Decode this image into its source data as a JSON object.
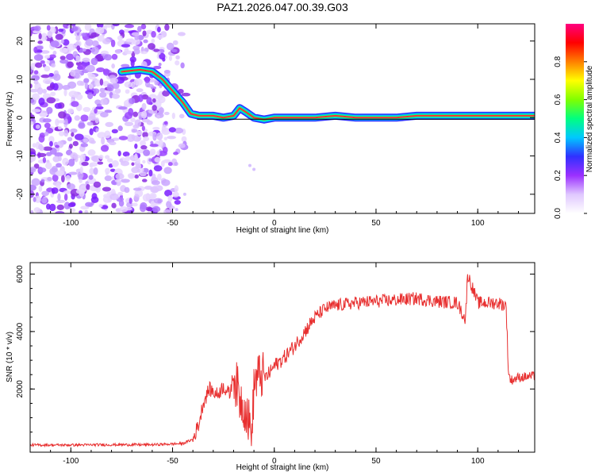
{
  "title": "PAZ1.2026.047.00.39.G03",
  "chart_data": [
    {
      "id": "spectrogram",
      "type": "heatmap",
      "xlabel": "Height of straight line (km)",
      "ylabel": "Frequency (Hz)",
      "xlim": [
        -120,
        128
      ],
      "ylim": [
        -25,
        24.5
      ],
      "x_ticks": [
        -100,
        -50,
        0,
        50,
        100
      ],
      "y_ticks": [
        -20,
        -10,
        0,
        10,
        20
      ],
      "tone_track": {
        "x": [
          -75,
          -66,
          -60,
          -55,
          -50,
          -45,
          -41,
          -37,
          -33,
          -30,
          -25,
          -20,
          -17,
          -14,
          -10,
          -5,
          0,
          5,
          10,
          20,
          30,
          40,
          50,
          60,
          70,
          80,
          90,
          100,
          110,
          120,
          128
        ],
        "freq": [
          12,
          12.5,
          12,
          10,
          7,
          4,
          1,
          0.5,
          0.5,
          0.5,
          0,
          0.5,
          2.5,
          1.5,
          0,
          -0.5,
          0,
          0,
          0,
          0,
          0.5,
          0,
          0,
          0,
          0.5,
          0.5,
          0.5,
          0.5,
          0.5,
          0.5,
          0.5
        ]
      }
    },
    {
      "id": "colorbar",
      "type": "heatmap",
      "label": "Normalized spectral amplitude",
      "range": [
        0,
        1
      ],
      "ticks": [
        0.0,
        0.2,
        0.4,
        0.6,
        0.8
      ],
      "tick_labels": [
        "0.0",
        "0.2",
        "0.4",
        "0.6",
        "0.8"
      ],
      "colors": [
        "#ffffff",
        "#e0c8ff",
        "#9b30ff",
        "#3030ff",
        "#00c8ff",
        "#00ff80",
        "#80ff00",
        "#ffff00",
        "#ff8000",
        "#ff0000",
        "#ff0080"
      ]
    },
    {
      "id": "snr",
      "type": "line",
      "xlabel": "Height of straight line (km)",
      "ylabel": "SNR (10 * v/v)",
      "xlim": [
        -120,
        128
      ],
      "ylim": [
        -200,
        6400
      ],
      "x_ticks": [
        -100,
        -50,
        0,
        50,
        100
      ],
      "y_ticks": [
        2000,
        4000,
        6000
      ],
      "color": "#e83030",
      "series": [
        {
          "name": "SNR",
          "x": [
            -120,
            -100,
            -80,
            -60,
            -45,
            -40,
            -37,
            -35,
            -32,
            -28,
            -25,
            -22,
            -20,
            -17,
            -14,
            -12,
            -11,
            -10,
            -7,
            -4,
            0,
            5,
            10,
            15,
            20,
            25,
            30,
            40,
            50,
            60,
            70,
            80,
            90,
            94,
            95,
            100,
            105,
            110,
            114,
            115,
            116,
            120,
            128
          ],
          "y": [
            50,
            50,
            60,
            60,
            100,
            250,
            800,
            1500,
            2000,
            1800,
            2100,
            1800,
            2500,
            1700,
            1300,
            700,
            200,
            2200,
            2500,
            2400,
            2800,
            3100,
            3500,
            4000,
            4500,
            4800,
            4900,
            5000,
            5050,
            5100,
            5150,
            5050,
            5000,
            4400,
            6000,
            5000,
            5000,
            5000,
            4900,
            2700,
            2300,
            2400,
            2450
          ]
        }
      ]
    }
  ]
}
